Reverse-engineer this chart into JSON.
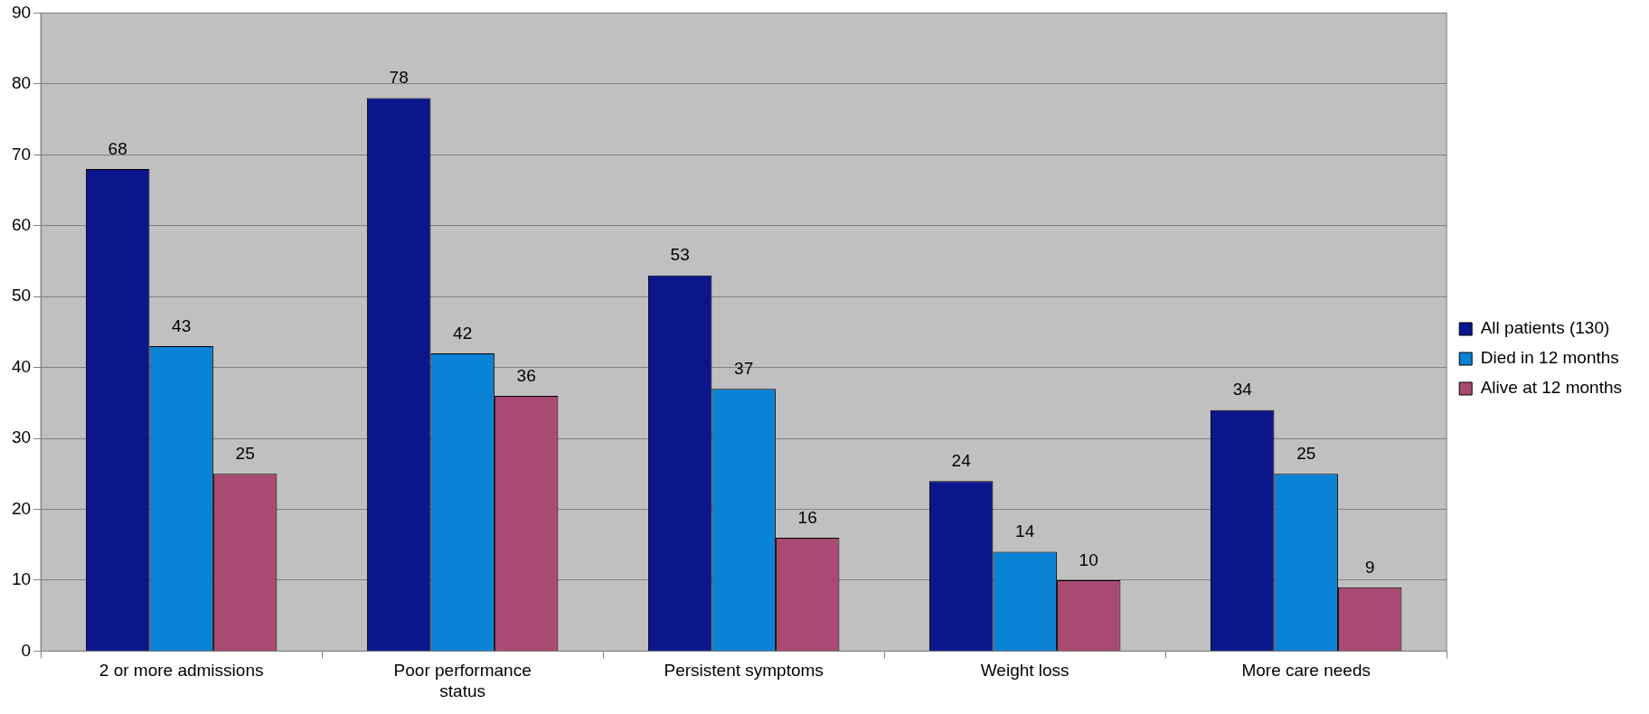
{
  "chart_data": {
    "type": "bar",
    "categories": [
      "2 or more admissions",
      "Poor performance status",
      "Persistent symptoms",
      "Weight loss",
      "More care needs"
    ],
    "series": [
      {
        "name": "All patients (130)",
        "color": "#0c168c",
        "values": [
          68,
          78,
          53,
          24,
          34
        ]
      },
      {
        "name": "Died in 12 months",
        "color": "#0a82d6",
        "values": [
          43,
          42,
          37,
          14,
          25
        ]
      },
      {
        "name": "Alive at 12 months",
        "color": "#a84a72",
        "values": [
          25,
          36,
          16,
          10,
          9
        ]
      }
    ],
    "ylim": [
      0,
      90
    ],
    "yticks": [
      0,
      10,
      20,
      30,
      40,
      50,
      60,
      70,
      80,
      90
    ],
    "grid": "y",
    "legend": "right",
    "data_labels": true
  }
}
